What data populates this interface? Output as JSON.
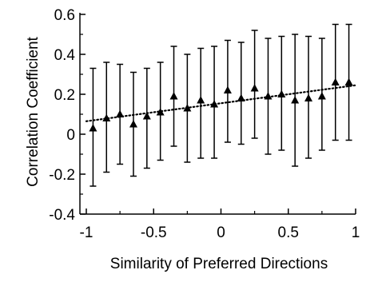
{
  "chart_data": {
    "type": "scatter",
    "title": "",
    "xlabel": "Similarity of Preferred Directions",
    "ylabel": "Correlation Coefficient",
    "xlim": [
      -1,
      1
    ],
    "ylim": [
      -0.4,
      0.6
    ],
    "x_ticks": [
      -1,
      -0.5,
      0,
      0.5,
      1
    ],
    "x_tick_labels": [
      "-1",
      "-0.5",
      "0",
      "0.5",
      "1"
    ],
    "y_ticks": [
      -0.4,
      -0.2,
      0,
      0.2,
      0.4,
      0.6
    ],
    "y_tick_labels": [
      "-0.4",
      "-0.2",
      "0",
      "0.2",
      "0.4",
      "0.6"
    ],
    "marker": "triangle",
    "grid": false,
    "series": [
      {
        "x": [
          -0.95,
          -0.85,
          -0.75,
          -0.65,
          -0.55,
          -0.45,
          -0.35,
          -0.25,
          -0.15,
          -0.05,
          0.05,
          0.15,
          0.25,
          0.35,
          0.45,
          0.55,
          0.65,
          0.75,
          0.85,
          0.95
        ],
        "y": [
          0.03,
          0.08,
          0.1,
          0.05,
          0.09,
          0.11,
          0.19,
          0.13,
          0.17,
          0.15,
          0.22,
          0.18,
          0.23,
          0.19,
          0.2,
          0.17,
          0.18,
          0.19,
          0.26,
          0.26
        ],
        "err_low": [
          -0.26,
          -0.19,
          -0.15,
          -0.21,
          -0.17,
          -0.13,
          -0.06,
          -0.14,
          -0.12,
          -0.12,
          -0.04,
          -0.05,
          -0.02,
          -0.1,
          -0.08,
          -0.16,
          -0.12,
          -0.08,
          -0.03,
          -0.03
        ],
        "err_high": [
          0.33,
          0.36,
          0.35,
          0.31,
          0.33,
          0.36,
          0.44,
          0.4,
          0.43,
          0.44,
          0.47,
          0.46,
          0.52,
          0.48,
          0.49,
          0.5,
          0.49,
          0.48,
          0.55,
          0.55
        ]
      }
    ],
    "trend_line": {
      "style": "dotted",
      "x": [
        -1,
        1
      ],
      "y": [
        0.065,
        0.245
      ]
    }
  }
}
